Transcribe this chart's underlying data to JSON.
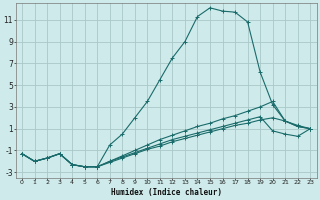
{
  "xlabel": "Humidex (Indice chaleur)",
  "background_color": "#ceeaea",
  "grid_color": "#aac8c8",
  "line_color": "#1a6b6b",
  "xlim": [
    -0.5,
    23.5
  ],
  "ylim": [
    -3.5,
    12.5
  ],
  "xticks": [
    0,
    1,
    2,
    3,
    4,
    5,
    6,
    7,
    8,
    9,
    10,
    11,
    12,
    13,
    14,
    15,
    16,
    17,
    18,
    19,
    20,
    21,
    22,
    23
  ],
  "yticks": [
    -3,
    -1,
    1,
    3,
    5,
    7,
    9,
    11
  ],
  "lines": [
    {
      "x": [
        0,
        1,
        2,
        3,
        4,
        5,
        6,
        7,
        8,
        9,
        10,
        11,
        12,
        13,
        14,
        15,
        16,
        17,
        18,
        19,
        20,
        21,
        22,
        23
      ],
      "y": [
        -1.3,
        -2.0,
        -1.7,
        -1.3,
        -2.3,
        -2.5,
        -2.5,
        -0.5,
        0.5,
        2.0,
        3.5,
        5.5,
        7.5,
        9.0,
        11.3,
        12.1,
        11.8,
        11.7,
        10.8,
        6.2,
        3.2,
        1.7,
        1.2,
        1.0
      ]
    },
    {
      "x": [
        0,
        1,
        2,
        3,
        4,
        5,
        6,
        7,
        8,
        9,
        10,
        11,
        12,
        13,
        14,
        15,
        16,
        17,
        18,
        19,
        20,
        21,
        22,
        23
      ],
      "y": [
        -1.3,
        -2.0,
        -1.7,
        -1.3,
        -2.3,
        -2.5,
        -2.5,
        -2.0,
        -1.5,
        -1.0,
        -0.5,
        0.0,
        0.4,
        0.8,
        1.2,
        1.5,
        1.9,
        2.2,
        2.6,
        3.0,
        3.5,
        1.7,
        1.3,
        1.0
      ]
    },
    {
      "x": [
        0,
        1,
        2,
        3,
        4,
        5,
        6,
        7,
        8,
        9,
        10,
        11,
        12,
        13,
        14,
        15,
        16,
        17,
        18,
        19,
        20,
        21,
        22,
        23
      ],
      "y": [
        -1.3,
        -2.0,
        -1.7,
        -1.3,
        -2.3,
        -2.5,
        -2.5,
        -2.0,
        -1.6,
        -1.2,
        -0.8,
        -0.4,
        0.0,
        0.3,
        0.6,
        0.9,
        1.2,
        1.5,
        1.8,
        2.1,
        0.8,
        0.5,
        0.3,
        1.0
      ]
    },
    {
      "x": [
        0,
        1,
        2,
        3,
        4,
        5,
        6,
        7,
        8,
        9,
        10,
        11,
        12,
        13,
        14,
        15,
        16,
        17,
        18,
        19,
        20,
        21,
        22,
        23
      ],
      "y": [
        -1.3,
        -2.0,
        -1.7,
        -1.3,
        -2.3,
        -2.5,
        -2.5,
        -2.1,
        -1.7,
        -1.3,
        -0.9,
        -0.6,
        -0.2,
        0.1,
        0.4,
        0.7,
        1.0,
        1.3,
        1.5,
        1.8,
        2.0,
        1.7,
        1.2,
        1.0
      ]
    }
  ]
}
